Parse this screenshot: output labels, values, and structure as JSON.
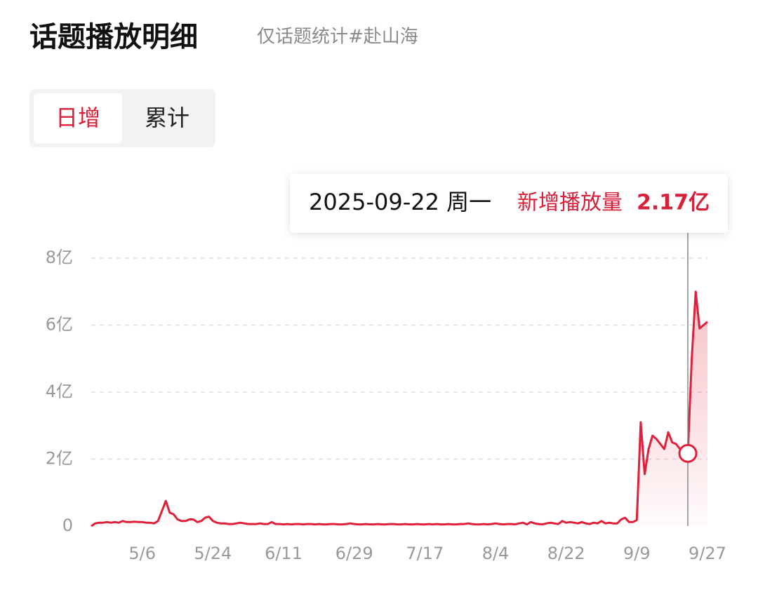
{
  "header": {
    "title": "话题播放明细",
    "subtitle": "仅话题统计#赴山海"
  },
  "tabs": [
    {
      "label": "日增",
      "active": true
    },
    {
      "label": "累计",
      "active": false
    }
  ],
  "chart_data": {
    "type": "line",
    "tooltip": {
      "date": "2025-09-22 周一",
      "label": "新增播放量",
      "value": "2.17亿"
    },
    "categories": [
      null,
      null,
      null,
      null,
      null,
      null,
      null,
      null,
      null,
      null,
      null,
      null,
      null,
      "5/6",
      null,
      null,
      null,
      null,
      null,
      null,
      null,
      null,
      null,
      null,
      null,
      null,
      null,
      null,
      null,
      null,
      null,
      "5/24",
      null,
      null,
      null,
      null,
      null,
      null,
      null,
      null,
      null,
      null,
      null,
      null,
      null,
      null,
      null,
      null,
      null,
      "6/11",
      null,
      null,
      null,
      null,
      null,
      null,
      null,
      null,
      null,
      null,
      null,
      null,
      null,
      null,
      null,
      null,
      null,
      "6/29",
      null,
      null,
      null,
      null,
      null,
      null,
      null,
      null,
      null,
      null,
      null,
      null,
      null,
      null,
      null,
      null,
      null,
      "7/17",
      null,
      null,
      null,
      null,
      null,
      null,
      null,
      null,
      null,
      null,
      null,
      null,
      null,
      null,
      null,
      null,
      null,
      "8/4",
      null,
      null,
      null,
      null,
      null,
      null,
      null,
      null,
      null,
      null,
      null,
      null,
      null,
      null,
      null,
      null,
      null,
      "8/22",
      null,
      null,
      null,
      null,
      null,
      null,
      null,
      null,
      null,
      null,
      null,
      null,
      null,
      null,
      null,
      null,
      null,
      "9/9",
      null,
      null,
      null,
      null,
      null,
      null,
      null,
      null,
      null,
      null,
      null,
      null,
      null,
      null,
      null,
      null,
      null,
      "9/27"
    ],
    "series": [
      {
        "color": "#e0203a",
        "values": [
          0,
          0.08,
          0.1,
          0.1,
          0.12,
          0.1,
          0.12,
          0.1,
          0.15,
          0.12,
          0.12,
          0.13,
          0.12,
          0.12,
          0.1,
          0.1,
          0.08,
          0.15,
          0.45,
          0.75,
          0.4,
          0.35,
          0.2,
          0.15,
          0.15,
          0.2,
          0.2,
          0.12,
          0.15,
          0.25,
          0.28,
          0.15,
          0.1,
          0.08,
          0.08,
          0.06,
          0.06,
          0.08,
          0.1,
          0.08,
          0.06,
          0.06,
          0.06,
          0.08,
          0.06,
          0.06,
          0.12,
          0.06,
          0.06,
          0.05,
          0.06,
          0.05,
          0.06,
          0.06,
          0.05,
          0.06,
          0.06,
          0.05,
          0.06,
          0.05,
          0.05,
          0.06,
          0.06,
          0.05,
          0.05,
          0.06,
          0.08,
          0.06,
          0.05,
          0.05,
          0.06,
          0.05,
          0.05,
          0.06,
          0.05,
          0.05,
          0.06,
          0.06,
          0.05,
          0.05,
          0.06,
          0.05,
          0.05,
          0.06,
          0.05,
          0.05,
          0.06,
          0.05,
          0.06,
          0.05,
          0.05,
          0.06,
          0.05,
          0.05,
          0.06,
          0.06,
          0.08,
          0.06,
          0.05,
          0.05,
          0.06,
          0.05,
          0.06,
          0.08,
          0.06,
          0.05,
          0.06,
          0.06,
          0.05,
          0.08,
          0.1,
          0.05,
          0.12,
          0.08,
          0.06,
          0.05,
          0.08,
          0.1,
          0.08,
          0.06,
          0.15,
          0.1,
          0.12,
          0.1,
          0.08,
          0.12,
          0.08,
          0.06,
          0.1,
          0.08,
          0.15,
          0.08,
          0.1,
          0.08,
          0.08,
          0.2,
          0.25,
          0.12,
          0.12,
          0.18,
          3.1,
          1.55,
          2.3,
          2.7,
          2.6,
          2.45,
          2.3,
          2.8,
          2.5,
          2.45,
          2.3,
          2.25,
          2.17,
          5.0,
          7.0,
          5.9,
          6.0,
          6.1
        ]
      }
    ],
    "ylim": [
      0,
      8
    ],
    "yticks": [
      0,
      {
        "value": 2,
        "label": "2亿"
      },
      {
        "value": 4,
        "label": "4亿"
      },
      {
        "value": 6,
        "label": "6亿"
      },
      {
        "value": 8,
        "label": "8亿"
      }
    ],
    "grid": true
  }
}
